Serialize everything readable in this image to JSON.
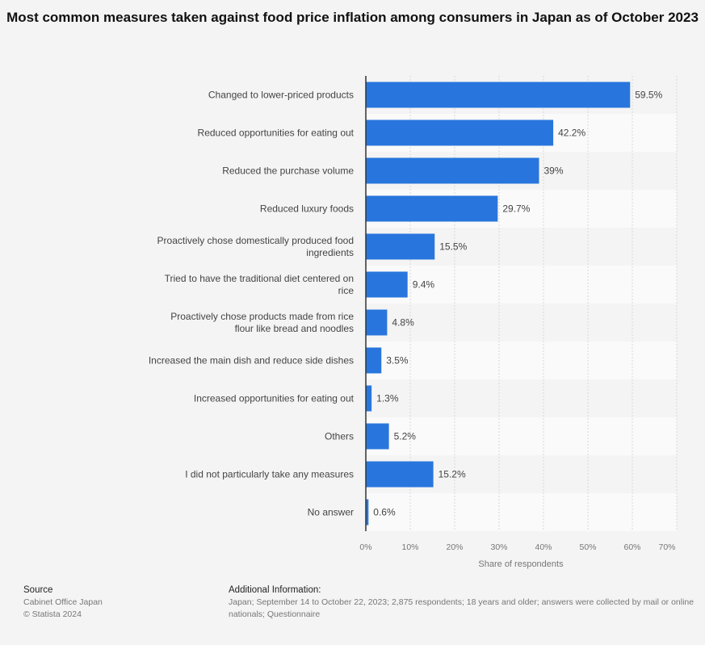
{
  "chart_data": {
    "type": "bar",
    "orientation": "horizontal",
    "title": "Most common measures taken against food price inflation among consumers in Japan as of October 2023",
    "categories": [
      "Changed to lower-priced products",
      "Reduced opportunities for eating out",
      "Reduced the purchase volume",
      "Reduced luxury foods",
      "Proactively chose domestically produced food ingredients",
      "Tried to have the traditional diet centered on rice",
      "Proactively chose products made from rice flour like bread and noodles",
      "Increased the main dish and reduce side dishes",
      "Increased opportunities for eating out",
      "Others",
      "I did not particularly take any measures",
      "No answer"
    ],
    "values": [
      59.5,
      42.2,
      39,
      29.7,
      15.5,
      9.4,
      4.8,
      3.5,
      1.3,
      5.2,
      15.2,
      0.6
    ],
    "value_labels": [
      "59.5%",
      "42.2%",
      "39%",
      "29.7%",
      "15.5%",
      "9.4%",
      "4.8%",
      "3.5%",
      "1.3%",
      "5.2%",
      "15.2%",
      "0.6%"
    ],
    "xlabel": "Share of respondents",
    "xlim": [
      0,
      70
    ],
    "xticks": [
      "0%",
      "10%",
      "20%",
      "30%",
      "40%",
      "50%",
      "60%",
      "70%"
    ],
    "grid": true,
    "bar_color": "#2876dd"
  },
  "footer": {
    "source_heading": "Source",
    "source": "Cabinet Office Japan",
    "copyright": "© Statista 2024",
    "info_heading": "Additional Information:",
    "info_line1": "Japan; September 14 to October 22, 2023; 2,875 respondents; 18 years and older; answers were collected by mail or online",
    "info_line2": "nationals; Questionnaire"
  }
}
